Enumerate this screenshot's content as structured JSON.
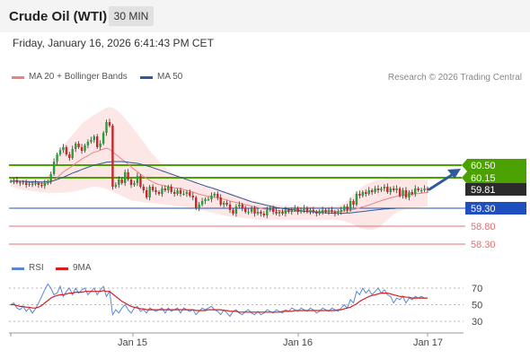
{
  "header": {
    "title": "Crude Oil (WTI)",
    "timeframe": "30 MIN"
  },
  "timestamp": "Friday, January 16, 2026 6:41:43 PM CET",
  "legend": {
    "bollinger": {
      "label": "MA 20 + Bollinger Bands",
      "color": "#f08080"
    },
    "ma50": {
      "label": "MA 50",
      "color": "#2f5a96"
    }
  },
  "copyright": "Research © 2026 Trading Central",
  "rsi_legend": {
    "rsi": {
      "label": "RSI",
      "color": "#5b86d6"
    },
    "ma9": {
      "label": "9MA",
      "color": "#d41f1f"
    }
  },
  "colors": {
    "up": "#2a9d3a",
    "down": "#c62828",
    "accent_green": "#4aa100",
    "blue": "#1f4fbf",
    "red_level": "#e86c6c",
    "current": "#2b2b2b"
  },
  "icons": {
    "forecast": "arrow-up-right-icon"
  },
  "chart_data": [
    {
      "type": "candlestick",
      "title": "Crude Oil (WTI)",
      "interval": "30 MIN",
      "ylim": [
        58.2,
        60.95
      ],
      "price_levels": [
        {
          "value": "60.50",
          "kind": "resistance",
          "color": "#4aa100"
        },
        {
          "value": "60.15",
          "kind": "resistance",
          "color": "#4aa100"
        },
        {
          "value": "59.81",
          "kind": "last price",
          "color": "#2b2b2b"
        },
        {
          "value": "59.30",
          "kind": "pivot",
          "color": "#1f4fbf"
        },
        {
          "value": "58.80",
          "kind": "support",
          "color": "#e86c6c"
        },
        {
          "value": "58.30",
          "kind": "support",
          "color": "#e86c6c"
        }
      ],
      "x_labels": [
        "Jan 15",
        "Jan 16",
        "Jan 17"
      ],
      "close": [
        60.05,
        60.08,
        60.02,
        60.0,
        60.01,
        59.95,
        59.98,
        59.97,
        60.0,
        59.95,
        59.92,
        60.0,
        60.05,
        60.25,
        60.6,
        60.8,
        60.92,
        61.0,
        60.8,
        60.7,
        60.95,
        61.1,
        61.0,
        60.9,
        61.05,
        61.15,
        61.2,
        61.3,
        61.0,
        61.1,
        61.4,
        61.7,
        61.6,
        59.9,
        59.95,
        60.1,
        60.0,
        60.3,
        60.1,
        59.95,
        60.0,
        60.2,
        59.9,
        59.8,
        59.6,
        59.9,
        59.8,
        59.75,
        59.7,
        59.85,
        59.8,
        59.9,
        59.75,
        59.7,
        59.8,
        59.7,
        59.7,
        59.75,
        59.65,
        59.6,
        59.3,
        59.4,
        59.5,
        59.55,
        59.55,
        59.65,
        59.7,
        59.6,
        59.4,
        59.45,
        59.4,
        59.25,
        59.15,
        59.35,
        59.4,
        59.3,
        59.2,
        59.2,
        59.3,
        59.15,
        59.2,
        59.15,
        59.1,
        59.25,
        59.3,
        59.2,
        59.15,
        59.2,
        59.15,
        59.25,
        59.2,
        59.25,
        59.3,
        59.2,
        59.25,
        59.3,
        59.2,
        59.25,
        59.2,
        59.15,
        59.2,
        59.25,
        59.2,
        59.25,
        59.2,
        59.15,
        59.2,
        59.25,
        59.35,
        59.25,
        59.5,
        59.4,
        59.7,
        59.65,
        59.75,
        59.7,
        59.8,
        59.75,
        59.85,
        59.8,
        59.85,
        59.9,
        59.75,
        59.85,
        59.8,
        59.85,
        59.65,
        59.8,
        59.6,
        59.75,
        59.7,
        59.85,
        59.8,
        59.8,
        59.85,
        59.81
      ],
      "ma20": [
        60.05,
        60.07,
        60.06,
        60.05,
        60.04,
        60.03,
        60.02,
        60.01,
        60.0,
        60.0,
        59.99,
        59.99,
        60.0,
        60.03,
        60.08,
        60.15,
        60.23,
        60.31,
        60.37,
        60.42,
        60.48,
        60.55,
        60.61,
        60.67,
        60.72,
        60.76,
        60.82,
        60.86,
        60.88,
        60.92,
        60.95,
        60.97,
        60.94,
        60.87,
        60.8,
        60.73,
        60.66,
        60.6,
        60.53,
        60.45,
        60.38,
        60.32,
        60.25,
        60.19,
        60.13,
        60.08,
        60.03,
        59.99,
        59.96,
        59.94,
        59.92,
        59.9,
        59.89,
        59.87,
        59.86,
        59.84,
        59.82,
        59.8,
        59.78,
        59.75,
        59.72,
        59.69,
        59.67,
        59.65,
        59.63,
        59.62,
        59.6,
        59.59,
        59.57,
        59.55,
        59.53,
        59.5,
        59.48,
        59.46,
        59.44,
        59.42,
        59.4,
        59.38,
        59.36,
        59.34,
        59.32,
        59.3,
        59.28,
        59.27,
        59.26,
        59.25,
        59.24,
        59.23,
        59.22,
        59.22,
        59.21,
        59.21,
        59.21,
        59.21,
        59.21,
        59.21,
        59.21,
        59.21,
        59.21,
        59.21,
        59.21,
        59.21,
        59.21,
        59.21,
        59.21,
        59.21,
        59.21,
        59.22,
        59.23,
        59.23,
        59.25,
        59.26,
        59.29,
        59.31,
        59.34,
        59.36,
        59.39,
        59.42,
        59.45,
        59.48,
        59.51,
        59.54,
        59.56,
        59.59,
        59.61,
        59.63,
        59.64,
        59.66,
        59.67,
        59.68,
        59.69,
        59.7,
        59.71,
        59.72,
        59.73,
        59.74
      ],
      "bb_upper": [
        60.15,
        60.17,
        60.17,
        60.17,
        60.17,
        60.17,
        60.17,
        60.17,
        60.17,
        60.17,
        60.17,
        60.17,
        60.2,
        60.3,
        60.5,
        60.7,
        60.9,
        61.05,
        61.15,
        61.25,
        61.35,
        61.45,
        61.55,
        61.65,
        61.72,
        61.78,
        61.85,
        61.9,
        61.95,
        62.0,
        62.05,
        62.1,
        62.12,
        62.1,
        62.05,
        61.98,
        61.9,
        61.8,
        61.7,
        61.6,
        61.48,
        61.38,
        61.25,
        61.15,
        61.02,
        60.9,
        60.8,
        60.72,
        60.62,
        60.52,
        60.44,
        60.36,
        60.3,
        60.24,
        60.2,
        60.16,
        60.12,
        60.08,
        60.05,
        60.02,
        60.0,
        59.98,
        59.96,
        59.94,
        59.92,
        59.9,
        59.87,
        59.85,
        59.82,
        59.79,
        59.76,
        59.73,
        59.7,
        59.67,
        59.64,
        59.61,
        59.58,
        59.55,
        59.52,
        59.5,
        59.48,
        59.46,
        59.44,
        59.42,
        59.41,
        59.4,
        59.39,
        59.38,
        59.37,
        59.36,
        59.36,
        59.36,
        59.36,
        59.36,
        59.36,
        59.36,
        59.36,
        59.36,
        59.36,
        59.36,
        59.36,
        59.36,
        59.36,
        59.36,
        59.36,
        59.36,
        59.37,
        59.4,
        59.45,
        59.52,
        59.6,
        59.68,
        59.76,
        59.83,
        59.9,
        59.96,
        60.0,
        60.04,
        60.07,
        60.09,
        60.1,
        60.11,
        60.12,
        60.12,
        60.12,
        60.12,
        60.12,
        60.12,
        60.12,
        60.12,
        60.12,
        60.12,
        60.12,
        60.12,
        60.12,
        60.12
      ],
      "bb_lower": [
        59.9,
        59.88,
        59.85,
        59.83,
        59.81,
        59.8,
        59.79,
        59.78,
        59.77,
        59.76,
        59.75,
        59.74,
        59.73,
        59.73,
        59.73,
        59.73,
        59.73,
        59.73,
        59.74,
        59.75,
        59.76,
        59.78,
        59.8,
        59.82,
        59.84,
        59.86,
        59.88,
        59.9,
        59.9,
        59.88,
        59.86,
        59.84,
        59.8,
        59.76,
        59.72,
        59.68,
        59.64,
        59.6,
        59.56,
        59.52,
        59.5,
        59.49,
        59.48,
        59.47,
        59.46,
        59.45,
        59.44,
        59.43,
        59.42,
        59.41,
        59.4,
        59.39,
        59.38,
        59.37,
        59.36,
        59.35,
        59.34,
        59.33,
        59.32,
        59.3,
        59.28,
        59.26,
        59.24,
        59.22,
        59.2,
        59.18,
        59.16,
        59.14,
        59.12,
        59.1,
        59.08,
        59.07,
        59.06,
        59.05,
        59.04,
        59.03,
        59.02,
        59.01,
        59.0,
        58.99,
        58.98,
        58.98,
        58.98,
        58.98,
        58.98,
        58.98,
        58.98,
        58.98,
        58.98,
        58.98,
        58.98,
        58.98,
        58.98,
        58.98,
        58.98,
        58.98,
        58.98,
        58.98,
        58.98,
        58.98,
        58.98,
        58.98,
        58.98,
        58.98,
        58.98,
        58.98,
        58.97,
        58.96,
        58.94,
        58.91,
        58.88,
        58.84,
        58.8,
        58.76,
        58.73,
        58.71,
        58.7,
        58.7,
        58.72,
        58.76,
        58.82,
        58.9,
        58.98,
        59.06,
        59.12,
        59.18,
        59.22,
        59.26,
        59.28,
        59.3,
        59.31,
        59.32,
        59.32,
        59.33,
        59.34,
        59.34
      ],
      "ma50": [
        60.05,
        60.05,
        60.05,
        60.05,
        60.05,
        60.04,
        60.04,
        60.04,
        60.04,
        60.03,
        60.03,
        60.03,
        60.04,
        60.05,
        60.07,
        60.1,
        60.13,
        60.16,
        60.2,
        60.24,
        60.28,
        60.31,
        60.34,
        60.38,
        60.41,
        60.44,
        60.47,
        60.5,
        60.52,
        60.54,
        60.56,
        60.58,
        60.59,
        60.6,
        60.6,
        60.6,
        60.6,
        60.59,
        60.58,
        60.57,
        60.56,
        60.55,
        60.53,
        60.51,
        60.48,
        60.46,
        60.43,
        60.4,
        60.37,
        60.34,
        60.31,
        60.28,
        60.25,
        60.22,
        60.19,
        60.16,
        60.13,
        60.1,
        60.07,
        60.04,
        60.01,
        59.98,
        59.95,
        59.92,
        59.89,
        59.87,
        59.84,
        59.81,
        59.78,
        59.75,
        59.72,
        59.69,
        59.66,
        59.63,
        59.6,
        59.57,
        59.54,
        59.51,
        59.48,
        59.46,
        59.44,
        59.42,
        59.4,
        59.38,
        59.36,
        59.34,
        59.32,
        59.31,
        59.29,
        59.28,
        59.27,
        59.26,
        59.25,
        59.24,
        59.23,
        59.22,
        59.21,
        59.2,
        59.2,
        59.19,
        59.18,
        59.18,
        59.17,
        59.17,
        59.16,
        59.16,
        59.16,
        59.16,
        59.16,
        59.17,
        59.17,
        59.18,
        59.19,
        59.2,
        59.21,
        59.22,
        59.23,
        59.24,
        59.25,
        59.26,
        59.27,
        59.28,
        59.28,
        59.29,
        59.29,
        59.3,
        59.3,
        59.3,
        59.3,
        59.3,
        59.3,
        59.3,
        59.3,
        59.3,
        59.3,
        59.3
      ]
    },
    {
      "type": "line",
      "title": "RSI",
      "ylim": [
        20,
        80
      ],
      "y_ticks": [
        "70",
        "50",
        "30"
      ],
      "series": [
        {
          "name": "RSI",
          "color": "#5b86d6",
          "values": [
            50,
            52,
            46,
            44,
            48,
            42,
            46,
            40,
            45,
            52,
            60,
            68,
            75,
            70,
            62,
            64,
            72,
            60,
            66,
            70,
            62,
            70,
            64,
            68,
            70,
            62,
            66,
            70,
            62,
            68,
            72,
            60,
            66,
            38,
            44,
            40,
            46,
            50,
            44,
            40,
            46,
            48,
            42,
            44,
            40,
            46,
            44,
            42,
            44,
            46,
            40,
            46,
            42,
            44,
            46,
            40,
            46,
            44,
            42,
            44,
            38,
            42,
            46,
            44,
            46,
            48,
            44,
            42,
            38,
            44,
            40,
            36,
            42,
            44,
            40,
            38,
            42,
            44,
            40,
            38,
            42,
            38,
            40,
            44,
            42,
            40,
            44,
            42,
            40,
            44,
            42,
            46,
            44,
            42,
            46,
            44,
            42,
            46,
            44,
            40,
            42,
            46,
            44,
            42,
            46,
            44,
            42,
            46,
            50,
            46,
            56,
            52,
            66,
            62,
            70,
            64,
            68,
            62,
            66,
            70,
            64,
            68,
            62,
            60,
            52,
            58,
            56,
            60,
            52,
            58,
            56,
            60,
            58,
            60,
            58,
            58
          ]
        },
        {
          "name": "9MA",
          "color": "#d41f1f",
          "values": [
            50,
            50,
            49,
            48,
            48,
            47,
            47,
            46,
            46,
            47,
            49,
            52,
            55,
            58,
            60,
            61,
            62,
            62,
            63,
            64,
            64,
            65,
            65,
            65,
            66,
            66,
            66,
            66,
            66,
            66,
            67,
            66,
            66,
            63,
            60,
            57,
            54,
            52,
            50,
            48,
            47,
            46,
            45,
            45,
            44,
            44,
            44,
            44,
            44,
            44,
            44,
            44,
            44,
            44,
            44,
            44,
            44,
            44,
            44,
            44,
            43,
            43,
            43,
            43,
            44,
            44,
            44,
            44,
            44,
            43,
            43,
            42,
            42,
            42,
            41,
            41,
            41,
            41,
            41,
            41,
            41,
            41,
            41,
            41,
            41,
            41,
            41,
            41,
            42,
            42,
            42,
            42,
            43,
            43,
            43,
            43,
            43,
            43,
            43,
            43,
            43,
            43,
            43,
            43,
            43,
            43,
            44,
            44,
            45,
            46,
            47,
            49,
            51,
            54,
            56,
            58,
            60,
            61,
            62,
            63,
            64,
            64,
            64,
            63,
            62,
            61,
            60,
            60,
            59,
            59,
            58,
            58,
            58,
            58,
            58,
            58
          ]
        }
      ]
    }
  ]
}
